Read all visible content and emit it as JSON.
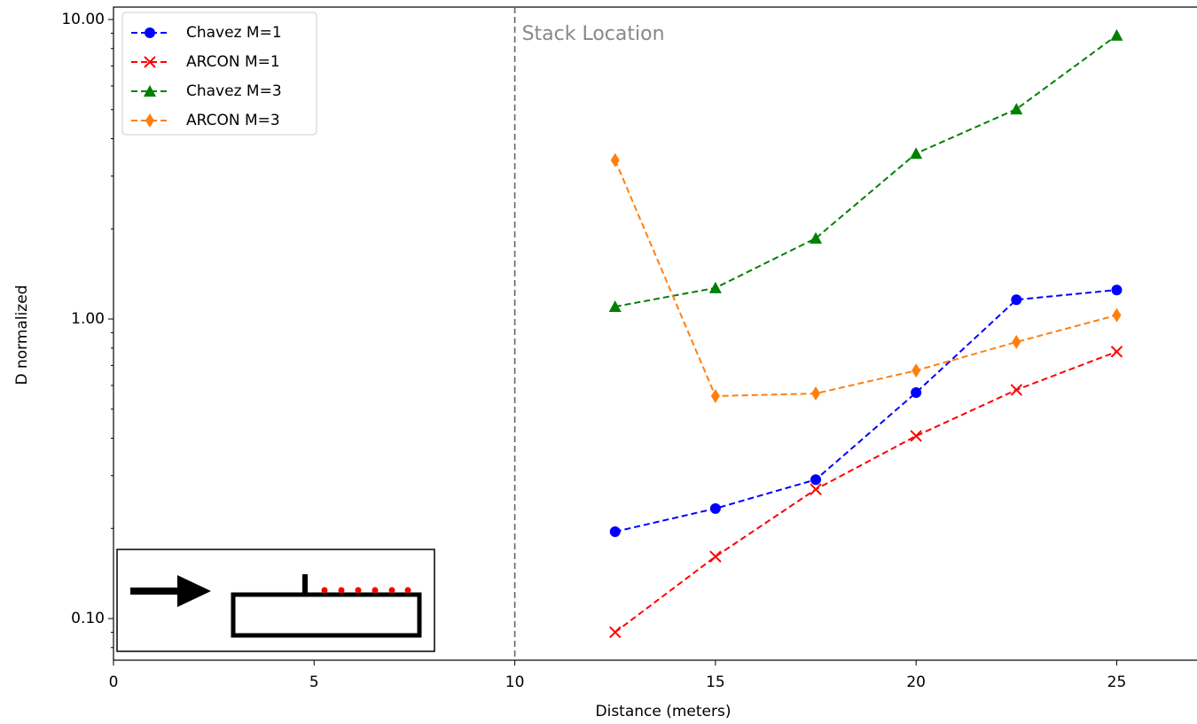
{
  "chart_data": {
    "type": "line",
    "y_scale": "log",
    "linestyle": "dashed",
    "x_label": "Distance (meters)",
    "y_label": "D normalized",
    "x": [
      12.5,
      15,
      17.5,
      20,
      22.5,
      25
    ],
    "series": [
      {
        "name": "Chavez M=1",
        "color": "#0000ff",
        "marker": "circle",
        "values": [
          0.195,
          0.233,
          0.291,
          0.568,
          1.16,
          1.25
        ]
      },
      {
        "name": "ARCON M=1",
        "color": "#ff0000",
        "marker": "x",
        "values": [
          0.09,
          0.161,
          0.27,
          0.407,
          0.58,
          0.778
        ]
      },
      {
        "name": "Chavez M=3",
        "color": "#008000",
        "marker": "triangle",
        "values": [
          1.1,
          1.27,
          1.86,
          3.57,
          5.02,
          8.85
        ]
      },
      {
        "name": "ARCON M=3",
        "color": "#ff7f0e",
        "marker": "diamond",
        "values": [
          3.39,
          0.553,
          0.564,
          0.673,
          0.838,
          1.03
        ]
      }
    ],
    "xlim": [
      0,
      27
    ],
    "xticks": [
      0,
      5,
      10,
      15,
      20,
      25
    ],
    "ylim": [
      0.0726,
      11
    ],
    "yticks": [
      {
        "value": 0.1,
        "label": "0.10"
      },
      {
        "value": 1,
        "label": "1.00"
      },
      {
        "value": 10,
        "label": "10.00"
      }
    ],
    "annotation": {
      "text": "Stack Location",
      "x": 10
    },
    "legend": "upper left"
  }
}
